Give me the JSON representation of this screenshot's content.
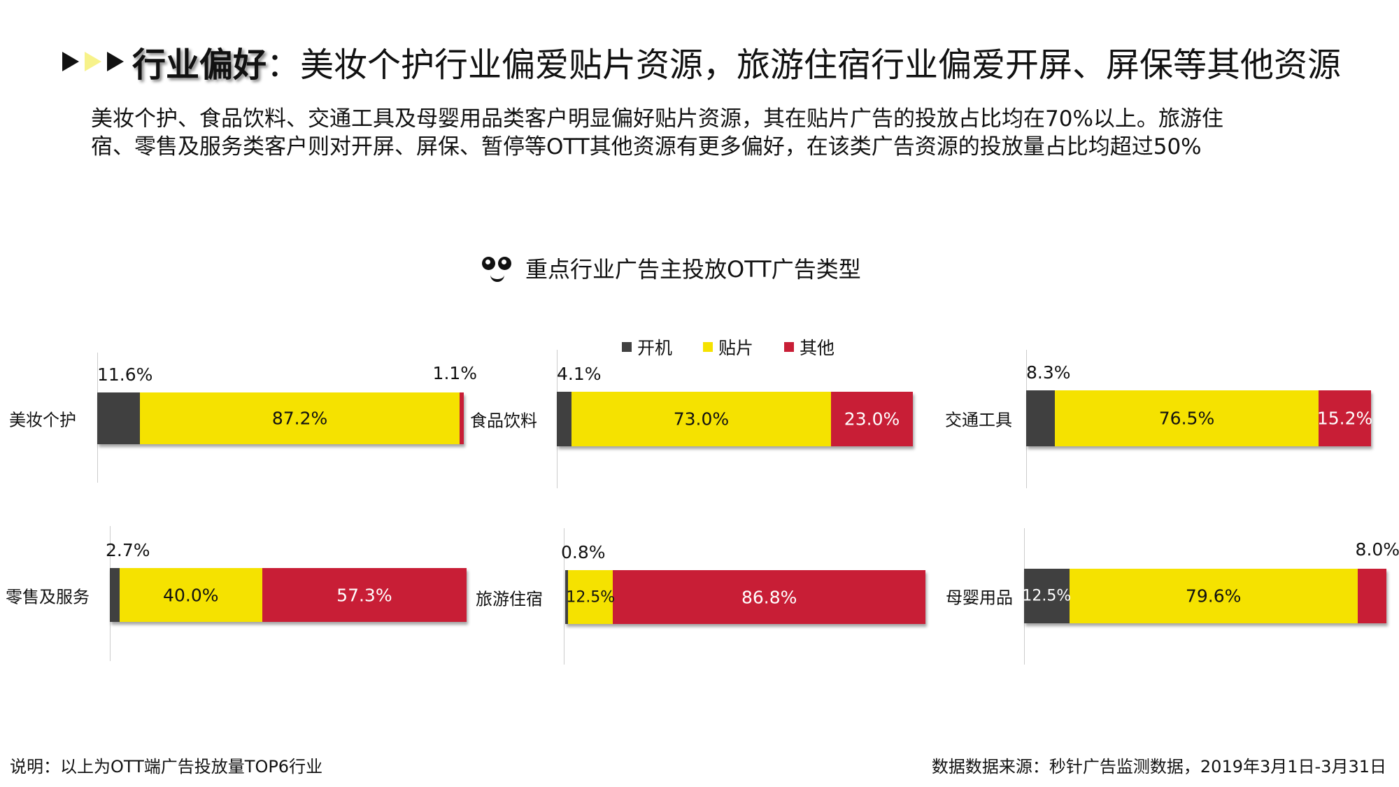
{
  "header": {
    "title_bold": "行业偏好",
    "title_rest": "：美妆个护行业偏爱贴片资源，旅游住宿行业偏爱开屏、屏保等其他资源",
    "paragraph_line1": "美妆个护、食品饮料、交通工具及母婴用品类客户明显偏好贴片资源，其在贴片广告的投放占比均在70%以上。旅游住",
    "paragraph_line2": "宿、零售及服务类客户则对开屏、屏保、暂停等OTT其他资源有更多偏好，在该类广告资源的投放量占比均超过50%"
  },
  "footer": {
    "note": "说明：以上为OTT端广告投放量TOP6行业",
    "source": "数据数据来源：秒针广告监测数据，2019年3月1日-3月31日"
  },
  "chart_data": {
    "type": "bar",
    "orientation": "horizontal-stacked-100",
    "title": "重点行业广告主投放OTT广告类型",
    "title_icon": "face-icon",
    "legend": {
      "placement": "top",
      "entries": [
        "开机",
        "贴片",
        "其他"
      ]
    },
    "colors": {
      "开机": "#404040",
      "贴片": "#f5e200",
      "其他": "#c81e36"
    },
    "grid": false,
    "categories": [
      "美妆个护",
      "食品饮料",
      "交通工具",
      "零售及服务",
      "旅游住宿",
      "母婴用品"
    ],
    "series": [
      {
        "name": "开机",
        "values": [
          11.6,
          4.1,
          8.3,
          2.7,
          0.8,
          12.5
        ],
        "labels": [
          "11.6%",
          "4.1%",
          "8.3%",
          "2.7%",
          "0.8%",
          "12.5%"
        ]
      },
      {
        "name": "贴片",
        "values": [
          87.2,
          73.0,
          76.5,
          40.0,
          12.5,
          79.6
        ],
        "labels": [
          "87.2%",
          "73.0%",
          "76.5%",
          "40.0%",
          "12.5%",
          "79.6%"
        ]
      },
      {
        "name": "其他",
        "values": [
          1.1,
          23.0,
          15.2,
          57.3,
          86.8,
          8.0
        ],
        "labels": [
          "1.1%",
          "23.0%",
          "15.2%",
          "57.3%",
          "86.8%",
          "8.0%"
        ]
      }
    ]
  }
}
